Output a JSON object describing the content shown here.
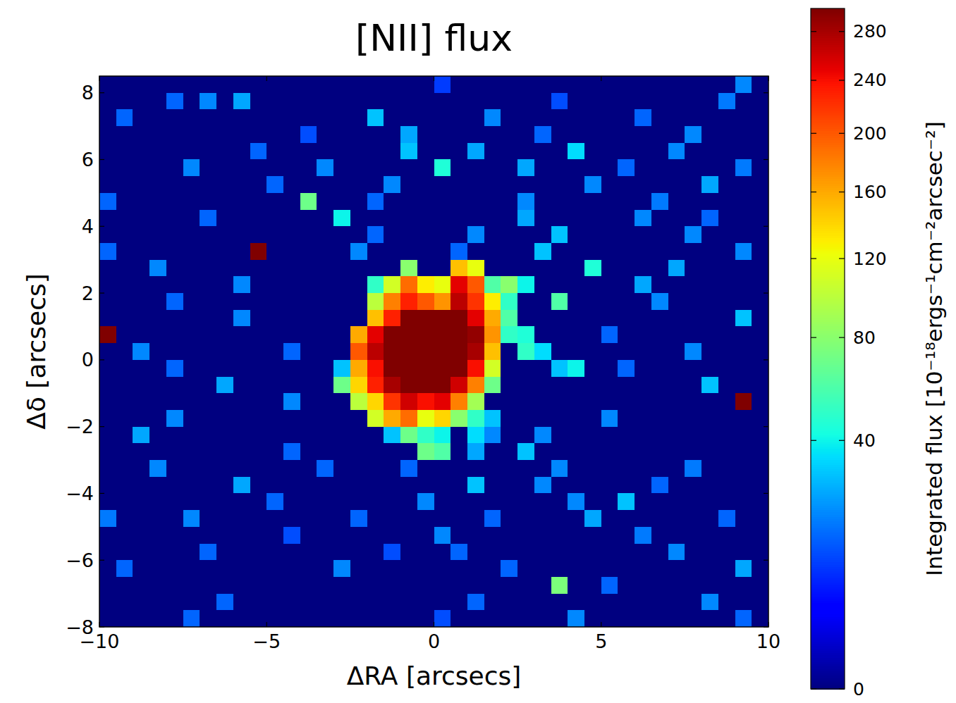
{
  "chart_data": {
    "type": "heatmap",
    "title": "[NII] flux",
    "xlabel": "ΔRA [arcsecs]",
    "ylabel": "Δδ [arcsecs]",
    "xlim": [
      -10,
      10
    ],
    "ylim": [
      -8,
      8.5
    ],
    "xticks": [
      {
        "value": -10,
        "label": "−10"
      },
      {
        "value": -5,
        "label": "−5"
      },
      0,
      5,
      10
    ],
    "yticks": [
      {
        "value": -8,
        "label": "−8"
      },
      {
        "value": -6,
        "label": "−6"
      },
      {
        "value": -4,
        "label": "−4"
      },
      {
        "value": -2,
        "label": "−2"
      },
      0,
      2,
      4,
      6,
      8
    ],
    "colorbar": {
      "label": "Integrated flux [10⁻¹⁸ergs⁻¹cm⁻²arcsec⁻²]",
      "lim": [
        0,
        300
      ],
      "ticks": [
        0,
        40,
        80,
        120,
        160,
        200,
        240,
        280
      ]
    },
    "x": [
      -9.75,
      -9.25,
      -8.75,
      -8.25,
      -7.75,
      -7.25,
      -6.75,
      -6.25,
      -5.75,
      -5.25,
      -4.75,
      -4.25,
      -3.75,
      -3.25,
      -2.75,
      -2.25,
      -1.75,
      -1.25,
      -0.75,
      -0.25,
      0.25,
      0.75,
      1.25,
      1.75,
      2.25,
      2.75,
      3.25,
      3.75,
      4.25,
      4.75,
      5.25,
      5.75,
      6.25,
      6.75,
      7.25,
      7.75,
      8.25,
      8.75,
      9.25,
      9.75
    ],
    "y": [
      8.25,
      7.75,
      7.25,
      6.75,
      6.25,
      5.75,
      5.25,
      4.75,
      4.25,
      3.75,
      3.25,
      2.75,
      2.25,
      1.75,
      1.25,
      0.75,
      0.25,
      -0.25,
      -0.75,
      -1.25,
      -1.75,
      -2.25,
      -2.75,
      -3.25,
      -3.75,
      -4.25,
      -4.75,
      -5.25,
      -5.75,
      -6.25,
      -6.75,
      -7.25,
      -7.75
    ],
    "values": [
      [
        0,
        0,
        0,
        0,
        0,
        0,
        0,
        0,
        0,
        0,
        0,
        0,
        0,
        0,
        0,
        0,
        0,
        0,
        0,
        0,
        10,
        0,
        0,
        0,
        0,
        0,
        0,
        0,
        0,
        0,
        0,
        0,
        0,
        0,
        0,
        0,
        0,
        0,
        20,
        0
      ],
      [
        0,
        0,
        0,
        0,
        15,
        0,
        20,
        0,
        25,
        0,
        0,
        0,
        0,
        0,
        0,
        0,
        0,
        0,
        0,
        0,
        0,
        0,
        0,
        0,
        0,
        0,
        0,
        12,
        0,
        0,
        0,
        0,
        0,
        0,
        0,
        0,
        0,
        18,
        0,
        0
      ],
      [
        0,
        15,
        0,
        0,
        0,
        0,
        0,
        0,
        0,
        0,
        0,
        0,
        0,
        0,
        0,
        0,
        30,
        0,
        0,
        0,
        0,
        0,
        0,
        20,
        0,
        0,
        0,
        0,
        0,
        0,
        0,
        0,
        15,
        0,
        0,
        0,
        0,
        0,
        0,
        0
      ],
      [
        0,
        0,
        0,
        0,
        0,
        0,
        0,
        0,
        0,
        0,
        0,
        0,
        12,
        0,
        0,
        0,
        0,
        0,
        25,
        0,
        0,
        0,
        0,
        0,
        0,
        0,
        15,
        0,
        0,
        0,
        0,
        0,
        0,
        0,
        0,
        20,
        0,
        0,
        0,
        0
      ],
      [
        0,
        0,
        0,
        0,
        0,
        0,
        0,
        0,
        0,
        15,
        0,
        0,
        0,
        0,
        0,
        0,
        0,
        0,
        30,
        0,
        0,
        0,
        25,
        0,
        0,
        0,
        0,
        0,
        35,
        0,
        0,
        0,
        0,
        0,
        20,
        0,
        0,
        0,
        0,
        0
      ],
      [
        0,
        0,
        0,
        0,
        0,
        20,
        0,
        0,
        0,
        0,
        0,
        0,
        0,
        20,
        0,
        0,
        0,
        0,
        0,
        0,
        45,
        0,
        0,
        0,
        0,
        25,
        0,
        0,
        0,
        0,
        0,
        15,
        0,
        0,
        0,
        0,
        0,
        0,
        18,
        0
      ],
      [
        0,
        0,
        0,
        0,
        0,
        0,
        0,
        0,
        0,
        0,
        15,
        0,
        0,
        0,
        0,
        0,
        0,
        20,
        0,
        0,
        0,
        0,
        0,
        0,
        0,
        0,
        0,
        0,
        0,
        20,
        0,
        0,
        0,
        0,
        0,
        0,
        25,
        0,
        0,
        0
      ],
      [
        15,
        0,
        0,
        0,
        0,
        0,
        0,
        0,
        0,
        0,
        0,
        0,
        70,
        0,
        0,
        0,
        15,
        0,
        0,
        0,
        0,
        0,
        0,
        0,
        0,
        20,
        0,
        0,
        0,
        0,
        0,
        0,
        0,
        18,
        0,
        0,
        0,
        0,
        0,
        0
      ],
      [
        0,
        0,
        0,
        0,
        0,
        0,
        15,
        0,
        0,
        0,
        0,
        0,
        0,
        0,
        40,
        0,
        0,
        0,
        0,
        0,
        0,
        0,
        0,
        0,
        0,
        25,
        0,
        0,
        0,
        0,
        0,
        0,
        20,
        0,
        0,
        0,
        15,
        0,
        0,
        0
      ],
      [
        0,
        0,
        0,
        0,
        0,
        0,
        0,
        0,
        0,
        0,
        0,
        0,
        0,
        0,
        0,
        0,
        15,
        0,
        0,
        0,
        0,
        0,
        20,
        0,
        0,
        0,
        0,
        30,
        0,
        0,
        0,
        0,
        0,
        0,
        0,
        20,
        0,
        0,
        0,
        0
      ],
      [
        15,
        0,
        0,
        0,
        0,
        0,
        0,
        0,
        0,
        300,
        0,
        0,
        0,
        0,
        0,
        20,
        0,
        0,
        0,
        0,
        0,
        15,
        0,
        0,
        0,
        0,
        30,
        0,
        0,
        0,
        0,
        0,
        0,
        0,
        0,
        0,
        0,
        0,
        20,
        0
      ],
      [
        0,
        0,
        0,
        20,
        0,
        0,
        0,
        0,
        0,
        0,
        0,
        0,
        0,
        0,
        0,
        0,
        0,
        0,
        80,
        0,
        0,
        150,
        120,
        0,
        0,
        0,
        0,
        0,
        0,
        45,
        0,
        0,
        0,
        0,
        25,
        0,
        0,
        0,
        0,
        0
      ],
      [
        0,
        0,
        0,
        0,
        0,
        0,
        0,
        0,
        20,
        0,
        0,
        0,
        0,
        0,
        0,
        0,
        50,
        110,
        190,
        130,
        120,
        250,
        200,
        60,
        80,
        40,
        0,
        0,
        0,
        0,
        0,
        0,
        25,
        0,
        0,
        0,
        0,
        0,
        0,
        0
      ],
      [
        0,
        0,
        0,
        0,
        15,
        0,
        0,
        0,
        0,
        0,
        0,
        0,
        0,
        0,
        0,
        0,
        100,
        180,
        230,
        200,
        170,
        270,
        220,
        130,
        50,
        0,
        0,
        60,
        0,
        0,
        0,
        0,
        0,
        20,
        0,
        0,
        0,
        0,
        0,
        0
      ],
      [
        0,
        0,
        0,
        0,
        0,
        0,
        0,
        0,
        20,
        0,
        0,
        0,
        0,
        0,
        0,
        0,
        150,
        230,
        300,
        300,
        300,
        300,
        250,
        160,
        60,
        0,
        0,
        0,
        0,
        0,
        0,
        0,
        0,
        0,
        0,
        0,
        0,
        0,
        30,
        0
      ],
      [
        300,
        0,
        0,
        0,
        0,
        0,
        0,
        0,
        0,
        0,
        0,
        0,
        0,
        0,
        0,
        160,
        250,
        300,
        300,
        300,
        300,
        300,
        290,
        170,
        50,
        45,
        0,
        0,
        0,
        0,
        15,
        0,
        0,
        0,
        0,
        0,
        0,
        0,
        0,
        0
      ],
      [
        0,
        0,
        20,
        0,
        0,
        0,
        0,
        0,
        0,
        0,
        0,
        15,
        0,
        0,
        0,
        200,
        270,
        300,
        300,
        300,
        300,
        300,
        280,
        150,
        0,
        50,
        35,
        0,
        0,
        0,
        0,
        0,
        0,
        0,
        0,
        20,
        0,
        0,
        0,
        0
      ],
      [
        0,
        0,
        0,
        0,
        15,
        0,
        0,
        0,
        0,
        0,
        0,
        0,
        0,
        0,
        30,
        160,
        240,
        300,
        300,
        300,
        300,
        300,
        240,
        110,
        0,
        0,
        0,
        30,
        40,
        0,
        0,
        15,
        0,
        0,
        0,
        0,
        0,
        0,
        0,
        0
      ],
      [
        0,
        0,
        0,
        0,
        0,
        0,
        0,
        25,
        0,
        0,
        0,
        0,
        0,
        0,
        70,
        140,
        230,
        280,
        300,
        300,
        300,
        260,
        180,
        70,
        0,
        0,
        0,
        0,
        0,
        0,
        0,
        0,
        0,
        0,
        0,
        0,
        30,
        0,
        0,
        0
      ],
      [
        0,
        0,
        0,
        0,
        0,
        0,
        0,
        0,
        0,
        0,
        0,
        20,
        0,
        0,
        0,
        100,
        140,
        220,
        260,
        240,
        250,
        180,
        90,
        0,
        0,
        0,
        0,
        0,
        0,
        0,
        0,
        0,
        0,
        0,
        0,
        0,
        0,
        0,
        300,
        0
      ],
      [
        0,
        0,
        0,
        0,
        20,
        0,
        0,
        0,
        0,
        0,
        0,
        0,
        0,
        0,
        0,
        0,
        110,
        160,
        190,
        120,
        140,
        80,
        50,
        30,
        0,
        0,
        0,
        0,
        0,
        0,
        20,
        0,
        0,
        0,
        0,
        0,
        0,
        0,
        0,
        0
      ],
      [
        0,
        0,
        25,
        0,
        0,
        0,
        0,
        0,
        0,
        0,
        0,
        0,
        0,
        0,
        0,
        0,
        0,
        30,
        70,
        50,
        40,
        0,
        35,
        20,
        0,
        0,
        20,
        0,
        0,
        0,
        0,
        0,
        0,
        0,
        0,
        0,
        0,
        0,
        0,
        0
      ],
      [
        0,
        0,
        0,
        0,
        0,
        0,
        0,
        0,
        0,
        0,
        0,
        15,
        0,
        0,
        0,
        0,
        0,
        0,
        0,
        70,
        60,
        0,
        25,
        0,
        0,
        30,
        0,
        0,
        0,
        0,
        0,
        0,
        0,
        0,
        0,
        0,
        0,
        0,
        0,
        0
      ],
      [
        0,
        0,
        0,
        20,
        0,
        0,
        0,
        0,
        0,
        0,
        0,
        0,
        0,
        15,
        0,
        0,
        0,
        0,
        15,
        0,
        0,
        0,
        0,
        0,
        0,
        0,
        0,
        20,
        0,
        0,
        0,
        0,
        0,
        0,
        0,
        18,
        0,
        0,
        0,
        0
      ],
      [
        0,
        0,
        0,
        0,
        0,
        0,
        0,
        0,
        25,
        0,
        0,
        0,
        0,
        0,
        0,
        0,
        0,
        0,
        0,
        0,
        0,
        0,
        30,
        0,
        0,
        0,
        20,
        0,
        0,
        0,
        0,
        0,
        0,
        15,
        0,
        0,
        0,
        0,
        0,
        0
      ],
      [
        0,
        0,
        0,
        0,
        0,
        0,
        0,
        0,
        0,
        0,
        15,
        0,
        0,
        0,
        0,
        0,
        0,
        0,
        0,
        20,
        0,
        0,
        0,
        0,
        0,
        0,
        0,
        0,
        20,
        0,
        0,
        30,
        0,
        0,
        0,
        0,
        0,
        0,
        0,
        0
      ],
      [
        18,
        0,
        0,
        0,
        0,
        20,
        0,
        0,
        0,
        0,
        0,
        0,
        0,
        0,
        0,
        15,
        0,
        0,
        0,
        0,
        0,
        0,
        0,
        15,
        0,
        0,
        0,
        0,
        0,
        25,
        0,
        0,
        0,
        0,
        0,
        0,
        0,
        15,
        0,
        0
      ],
      [
        0,
        0,
        0,
        0,
        0,
        0,
        0,
        0,
        0,
        0,
        0,
        12,
        0,
        0,
        0,
        0,
        0,
        0,
        0,
        0,
        20,
        0,
        0,
        0,
        0,
        0,
        0,
        0,
        0,
        0,
        0,
        0,
        18,
        0,
        0,
        0,
        0,
        0,
        0,
        0
      ],
      [
        0,
        0,
        0,
        0,
        0,
        0,
        15,
        0,
        0,
        0,
        0,
        0,
        0,
        0,
        0,
        0,
        0,
        12,
        0,
        0,
        0,
        15,
        0,
        0,
        0,
        0,
        0,
        0,
        0,
        0,
        0,
        0,
        0,
        0,
        20,
        0,
        0,
        0,
        0,
        0
      ],
      [
        0,
        15,
        0,
        0,
        0,
        0,
        0,
        0,
        0,
        0,
        0,
        0,
        0,
        0,
        20,
        0,
        0,
        0,
        0,
        0,
        0,
        0,
        0,
        0,
        15,
        0,
        0,
        0,
        0,
        0,
        0,
        0,
        0,
        0,
        0,
        0,
        0,
        0,
        25,
        0
      ],
      [
        0,
        0,
        0,
        0,
        0,
        0,
        0,
        0,
        0,
        0,
        0,
        0,
        0,
        0,
        0,
        0,
        0,
        0,
        0,
        0,
        0,
        0,
        0,
        0,
        0,
        0,
        0,
        75,
        0,
        0,
        15,
        0,
        0,
        0,
        0,
        0,
        0,
        0,
        0,
        0
      ],
      [
        0,
        0,
        0,
        0,
        0,
        0,
        0,
        15,
        0,
        0,
        0,
        0,
        0,
        0,
        0,
        0,
        0,
        0,
        0,
        0,
        0,
        0,
        15,
        0,
        0,
        0,
        0,
        0,
        0,
        0,
        0,
        0,
        0,
        0,
        0,
        0,
        20,
        0,
        0,
        0
      ],
      [
        0,
        0,
        0,
        0,
        0,
        15,
        0,
        0,
        0,
        0,
        0,
        0,
        0,
        0,
        0,
        0,
        0,
        0,
        0,
        0,
        12,
        0,
        0,
        0,
        0,
        0,
        0,
        0,
        20,
        0,
        0,
        0,
        0,
        0,
        0,
        0,
        0,
        0,
        15,
        0
      ]
    ]
  }
}
